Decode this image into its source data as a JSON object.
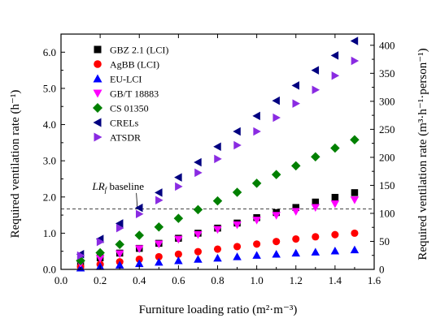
{
  "chart_data": {
    "type": "scatter",
    "title": "",
    "xlabel": "Furniture loading ratio (m²·m⁻³)",
    "ylabel_left": "Required ventilation rate (h⁻¹)",
    "ylabel_right": "Required ventilation rate (m³·h⁻¹·person⁻¹)",
    "xlim": [
      0.0,
      1.6
    ],
    "ylim_left": [
      0.0,
      6.5
    ],
    "ylim_right": [
      0,
      420
    ],
    "xticks": [
      "0.0",
      "0.2",
      "0.4",
      "0.6",
      "0.8",
      "1.0",
      "1.2",
      "1.4",
      "1.6"
    ],
    "yticks_left": [
      "0.0",
      "1.0",
      "2.0",
      "3.0",
      "4.0",
      "5.0",
      "6.0"
    ],
    "yticks_right": [
      "0",
      "50",
      "100",
      "150",
      "200",
      "250",
      "300",
      "350",
      "400"
    ],
    "grid": false,
    "legend_position": "top-left",
    "baseline": {
      "label": "LR_f baseline",
      "label_main": "LR",
      "label_sub": "f",
      "label_rest": " baseline",
      "y": 1.67,
      "style": "dashed"
    },
    "x": [
      0.1,
      0.2,
      0.3,
      0.4,
      0.5,
      0.6,
      0.7,
      0.8,
      0.9,
      1.0,
      1.1,
      1.2,
      1.3,
      1.4,
      1.5
    ],
    "series": [
      {
        "name": "GBZ 2.1 (LCI)",
        "marker": "square",
        "color": "#000000",
        "values": [
          0.18,
          0.32,
          0.45,
          0.58,
          0.72,
          0.86,
          1.0,
          1.14,
          1.28,
          1.43,
          1.57,
          1.71,
          1.86,
          1.99,
          2.12
        ]
      },
      {
        "name": "AgBB (LCI)",
        "marker": "circle",
        "color": "#ff0000",
        "values": [
          0.07,
          0.14,
          0.21,
          0.28,
          0.35,
          0.42,
          0.49,
          0.56,
          0.63,
          0.7,
          0.77,
          0.84,
          0.9,
          0.96,
          1.0
        ]
      },
      {
        "name": "EU-LCI",
        "marker": "triangle-up",
        "color": "#0000ff",
        "values": [
          0.04,
          0.08,
          0.12,
          0.16,
          0.2,
          0.24,
          0.28,
          0.31,
          0.35,
          0.39,
          0.42,
          0.45,
          0.48,
          0.51,
          0.54
        ]
      },
      {
        "name": "GB/T 18883",
        "marker": "triangle-down",
        "color": "#ff00ff",
        "values": [
          0.16,
          0.3,
          0.43,
          0.57,
          0.7,
          0.83,
          0.96,
          1.1,
          1.23,
          1.36,
          1.49,
          1.6,
          1.71,
          1.81,
          1.92
        ]
      },
      {
        "name": "CS 01350",
        "marker": "diamond",
        "color": "#008000",
        "values": [
          0.24,
          0.46,
          0.69,
          0.94,
          1.17,
          1.41,
          1.65,
          1.89,
          2.13,
          2.38,
          2.62,
          2.86,
          3.11,
          3.35,
          3.58
        ]
      },
      {
        "name": "CRELs",
        "marker": "triangle-left",
        "color": "#000080",
        "values": [
          0.42,
          0.84,
          1.27,
          1.7,
          2.12,
          2.54,
          2.96,
          3.39,
          3.81,
          4.24,
          4.66,
          5.08,
          5.5,
          5.91,
          6.31
        ]
      },
      {
        "name": "ATSDR",
        "marker": "triangle-right",
        "color": "#8a2be2",
        "values": [
          0.38,
          0.76,
          1.14,
          1.53,
          1.91,
          2.29,
          2.67,
          3.05,
          3.43,
          3.81,
          4.19,
          4.58,
          4.96,
          5.35,
          5.76
        ]
      }
    ]
  }
}
